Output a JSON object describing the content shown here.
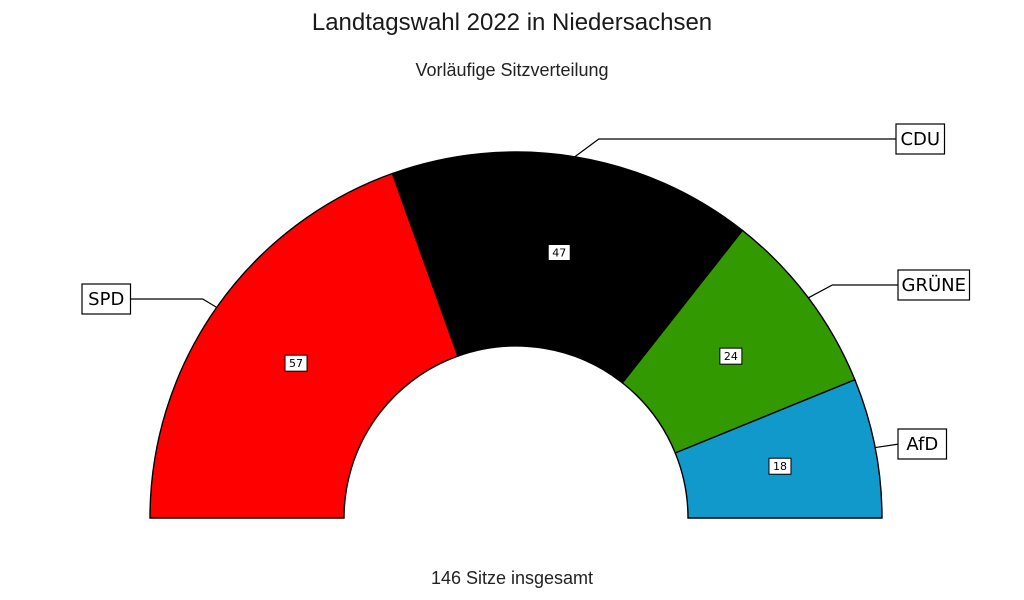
{
  "title": "Landtagswahl 2022 in Niedersachsen",
  "subtitle": "Vorläufige Sitzverteilung",
  "caption": "146 Sitze insgesamt",
  "chart_data": {
    "type": "pie",
    "variant": "half-donut (parliament)",
    "total": 146,
    "categories": [
      "SPD",
      "CDU",
      "GRÜNE",
      "AfD"
    ],
    "values": [
      57,
      47,
      24,
      18
    ],
    "colors": [
      "#ff0000",
      "#000000",
      "#339900",
      "#1199cc"
    ]
  }
}
